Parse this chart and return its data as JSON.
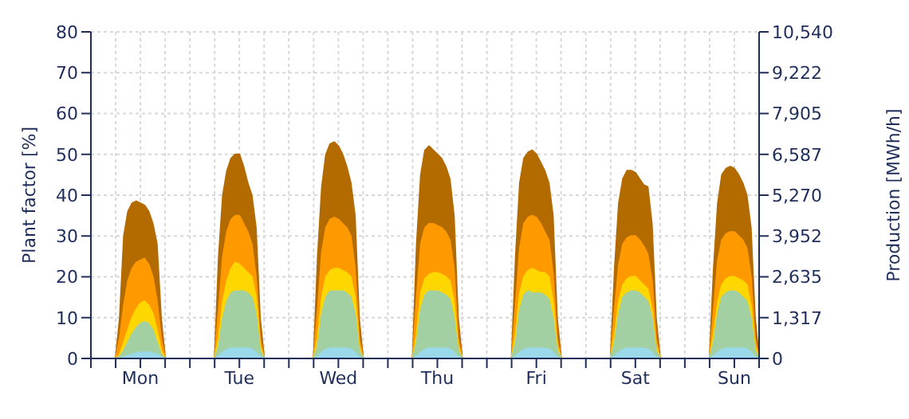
{
  "chart_data": {
    "type": "area",
    "ylabel": "Plant factor [%]",
    "y2label": "Production [MWh/h]",
    "categories": [
      null,
      null,
      null,
      null,
      null,
      null,
      null,
      null,
      null,
      null,
      null,
      null,
      "Mon",
      null,
      null,
      null,
      null,
      null,
      null,
      null,
      null,
      null,
      null,
      null,
      null,
      null,
      null,
      null,
      null,
      null,
      null,
      null,
      null,
      null,
      null,
      null,
      "Tue",
      null,
      null,
      null,
      null,
      null,
      null,
      null,
      null,
      null,
      null,
      null,
      null,
      null,
      null,
      null,
      null,
      null,
      null,
      null,
      null,
      null,
      null,
      null,
      "Wed",
      null,
      null,
      null,
      null,
      null,
      null,
      null,
      null,
      null,
      null,
      null,
      null,
      null,
      null,
      null,
      null,
      null,
      null,
      null,
      null,
      null,
      null,
      null,
      "Thu",
      null,
      null,
      null,
      null,
      null,
      null,
      null,
      null,
      null,
      null,
      null,
      null,
      null,
      null,
      null,
      null,
      null,
      null,
      null,
      null,
      null,
      null,
      null,
      "Fri",
      null,
      null,
      null,
      null,
      null,
      null,
      null,
      null,
      null,
      null,
      null,
      null,
      null,
      null,
      null,
      null,
      null,
      null,
      null,
      null,
      null,
      null,
      null,
      "Sat",
      null,
      null,
      null,
      null,
      null,
      null,
      null,
      null,
      null,
      null,
      null,
      null,
      null,
      null,
      null,
      null,
      null,
      null,
      null,
      null,
      null,
      null,
      null,
      "Sun",
      null,
      null,
      null,
      null,
      null,
      null
    ],
    "ylim": [
      0,
      80
    ],
    "yticks": [
      0,
      10,
      20,
      30,
      40,
      50,
      60,
      70,
      80
    ],
    "y2lim": [
      0,
      10540
    ],
    "y2ticks": [
      {
        "value": 0,
        "label": "0"
      },
      {
        "value": 1317,
        "label": "1,317"
      },
      {
        "value": 2635,
        "label": "2,635"
      },
      {
        "value": 3952,
        "label": "3,952"
      },
      {
        "value": 5270,
        "label": "5,270"
      },
      {
        "value": 6587,
        "label": "6,587"
      },
      {
        "value": 7905,
        "label": "7,905"
      },
      {
        "value": 9222,
        "label": "9,222"
      },
      {
        "value": 10540,
        "label": "10,540"
      }
    ],
    "grid": true,
    "legend": false,
    "marker": "none",
    "series": [
      {
        "color": "#b36b00",
        "values": [
          0,
          0,
          0,
          0,
          0,
          0,
          0,
          10,
          30,
          36,
          38,
          38.5,
          38,
          37.5,
          36,
          33,
          28,
          10,
          0,
          0,
          0,
          0,
          0,
          0,
          0,
          0,
          0,
          0,
          0,
          0,
          0,
          25,
          40,
          46,
          49,
          50,
          50,
          47,
          43,
          40,
          32,
          10,
          0,
          0,
          0,
          0,
          0,
          0,
          0,
          0,
          0,
          0,
          0,
          0,
          0,
          25,
          42,
          50,
          52.5,
          53,
          52,
          50,
          47,
          43,
          35,
          10,
          0,
          0,
          0,
          0,
          0,
          0,
          0,
          0,
          0,
          0,
          0,
          0,
          0,
          28,
          45,
          51,
          52,
          51,
          50,
          49,
          47,
          44,
          35,
          10,
          0,
          0,
          0,
          0,
          0,
          0,
          0,
          0,
          0,
          0,
          0,
          0,
          0,
          25,
          43,
          49,
          50.5,
          51,
          50,
          48,
          46,
          43,
          35,
          10,
          0,
          0,
          0,
          0,
          0,
          0,
          0,
          0,
          0,
          0,
          0,
          0,
          0,
          22,
          38,
          44,
          46,
          46,
          45.5,
          44,
          42.5,
          42,
          33,
          10,
          0,
          0,
          0,
          0,
          0,
          0,
          0,
          0,
          0,
          0,
          0,
          0,
          0,
          22,
          38,
          45,
          46.5,
          47,
          46.5,
          45,
          43,
          40,
          32,
          10,
          0
        ]
      },
      {
        "color": "#ff9900",
        "values": [
          0,
          0,
          0,
          0,
          0,
          0,
          0,
          5,
          13,
          19,
          22,
          23.5,
          24,
          24.5,
          23,
          20,
          14,
          5,
          0,
          0,
          0,
          0,
          0,
          0,
          0,
          0,
          0,
          0,
          0,
          0,
          0,
          12,
          25,
          31,
          34,
          35,
          35,
          33,
          31,
          28,
          20,
          5,
          0,
          0,
          0,
          0,
          0,
          0,
          0,
          0,
          0,
          0,
          0,
          0,
          0,
          12,
          26,
          32,
          34,
          34.5,
          34,
          33,
          32,
          30,
          22,
          5,
          0,
          0,
          0,
          0,
          0,
          0,
          0,
          0,
          0,
          0,
          0,
          0,
          0,
          15,
          28,
          32,
          33,
          33,
          32.5,
          32,
          31,
          29,
          22,
          5,
          0,
          0,
          0,
          0,
          0,
          0,
          0,
          0,
          0,
          0,
          0,
          0,
          0,
          13,
          27,
          33,
          34.5,
          35,
          34.5,
          33,
          31,
          29,
          21,
          5,
          0,
          0,
          0,
          0,
          0,
          0,
          0,
          0,
          0,
          0,
          0,
          0,
          0,
          12,
          23,
          28,
          29.5,
          30,
          30,
          29,
          27.5,
          25.5,
          19,
          5,
          0,
          0,
          0,
          0,
          0,
          0,
          0,
          0,
          0,
          0,
          0,
          0,
          0,
          12,
          24,
          29,
          30.5,
          31,
          31,
          30,
          29,
          27,
          20,
          5,
          0
        ]
      },
      {
        "color": "#ffd700",
        "values": [
          0,
          0,
          0,
          0,
          0,
          0,
          0,
          1,
          4,
          7,
          10,
          12,
          13.5,
          14,
          13,
          11,
          7,
          2,
          0,
          0,
          0,
          0,
          0,
          0,
          0,
          0,
          0,
          0,
          0,
          0,
          0,
          5,
          14,
          19,
          22,
          23.5,
          23,
          22,
          21,
          20,
          15,
          3,
          0,
          0,
          0,
          0,
          0,
          0,
          0,
          0,
          0,
          0,
          0,
          0,
          0,
          5,
          15,
          20,
          21.5,
          22,
          22,
          21.5,
          21,
          20,
          15,
          3,
          0,
          0,
          0,
          0,
          0,
          0,
          0,
          0,
          0,
          0,
          0,
          0,
          0,
          6,
          16,
          19.5,
          20.5,
          21,
          21,
          20.5,
          20,
          19,
          14,
          3,
          0,
          0,
          0,
          0,
          0,
          0,
          0,
          0,
          0,
          0,
          0,
          0,
          0,
          6,
          16,
          20,
          21.5,
          22,
          21.5,
          21,
          21,
          20,
          14,
          3,
          0,
          0,
          0,
          0,
          0,
          0,
          0,
          0,
          0,
          0,
          0,
          0,
          0,
          6,
          14,
          18,
          19.5,
          20,
          20,
          19,
          18,
          17,
          12,
          3,
          0,
          0,
          0,
          0,
          0,
          0,
          0,
          0,
          0,
          0,
          0,
          0,
          0,
          6,
          14,
          18,
          19.5,
          20,
          20,
          19.5,
          19,
          18,
          13,
          3,
          0
        ]
      },
      {
        "color": "#a3d0a3",
        "values": [
          0,
          0,
          0,
          0,
          0,
          0,
          0,
          0.5,
          2,
          4,
          6,
          7.5,
          8.5,
          9,
          8.5,
          7,
          4,
          1,
          0,
          0,
          0,
          0,
          0,
          0,
          0,
          0,
          0,
          0,
          0,
          0,
          0,
          3,
          10,
          14,
          16,
          16.5,
          16.5,
          16.5,
          16,
          15,
          11,
          2,
          0,
          0,
          0,
          0,
          0,
          0,
          0,
          0,
          0,
          0,
          0,
          0,
          0,
          3,
          11,
          15,
          16.5,
          16.5,
          16.5,
          16.5,
          16,
          15,
          11,
          2,
          0,
          0,
          0,
          0,
          0,
          0,
          0,
          0,
          0,
          0,
          0,
          0,
          0,
          4,
          12,
          15.5,
          16.5,
          16.5,
          16.5,
          16,
          15.5,
          14.5,
          10,
          2,
          0,
          0,
          0,
          0,
          0,
          0,
          0,
          0,
          0,
          0,
          0,
          0,
          0,
          4,
          12,
          15.5,
          16.5,
          16,
          16,
          16,
          15.5,
          14.5,
          10,
          2,
          0,
          0,
          0,
          0,
          0,
          0,
          0,
          0,
          0,
          0,
          0,
          0,
          0,
          4,
          11,
          15,
          16,
          16.5,
          16.5,
          16,
          15,
          14,
          10,
          2,
          0,
          0,
          0,
          0,
          0,
          0,
          0,
          0,
          0,
          0,
          0,
          0,
          0,
          4,
          11,
          15,
          16,
          16.5,
          16.5,
          16,
          15,
          14,
          10,
          2,
          0
        ]
      },
      {
        "color": "#99d9ea",
        "values": [
          0,
          0,
          0,
          0,
          0,
          0,
          0,
          0,
          0.3,
          0.7,
          1,
          1.3,
          1.5,
          1.5,
          1.5,
          1.3,
          1,
          0.3,
          0,
          0,
          0,
          0,
          0,
          0,
          0,
          0,
          0,
          0,
          0,
          0,
          0,
          0.5,
          1.5,
          2.2,
          2.5,
          2.5,
          2.5,
          2.5,
          2.5,
          2.3,
          1.5,
          0.3,
          0,
          0,
          0,
          0,
          0,
          0,
          0,
          0,
          0,
          0,
          0,
          0,
          0,
          0.5,
          1.5,
          2.2,
          2.5,
          2.5,
          2.5,
          2.5,
          2.5,
          2.3,
          1.5,
          0.3,
          0,
          0,
          0,
          0,
          0,
          0,
          0,
          0,
          0,
          0,
          0,
          0,
          0,
          0.5,
          1.5,
          2.2,
          2.5,
          2.5,
          2.5,
          2.5,
          2.5,
          2.3,
          1.5,
          0.3,
          0,
          0,
          0,
          0,
          0,
          0,
          0,
          0,
          0,
          0,
          0,
          0,
          0,
          0.5,
          1.5,
          2.2,
          2.5,
          2.5,
          2.5,
          2.5,
          2.5,
          2.3,
          1.5,
          0.3,
          0,
          0,
          0,
          0,
          0,
          0,
          0,
          0,
          0,
          0,
          0,
          0,
          0,
          0.5,
          1.5,
          2.2,
          2.5,
          2.5,
          2.5,
          2.5,
          2.5,
          2.3,
          1.5,
          0.3,
          0,
          0,
          0,
          0,
          0,
          0,
          0,
          0,
          0,
          0,
          0,
          0,
          0,
          0.5,
          1.5,
          2.2,
          2.5,
          2.5,
          2.5,
          2.5,
          2.5,
          2.3,
          1.5,
          0.3,
          0
        ]
      }
    ]
  }
}
